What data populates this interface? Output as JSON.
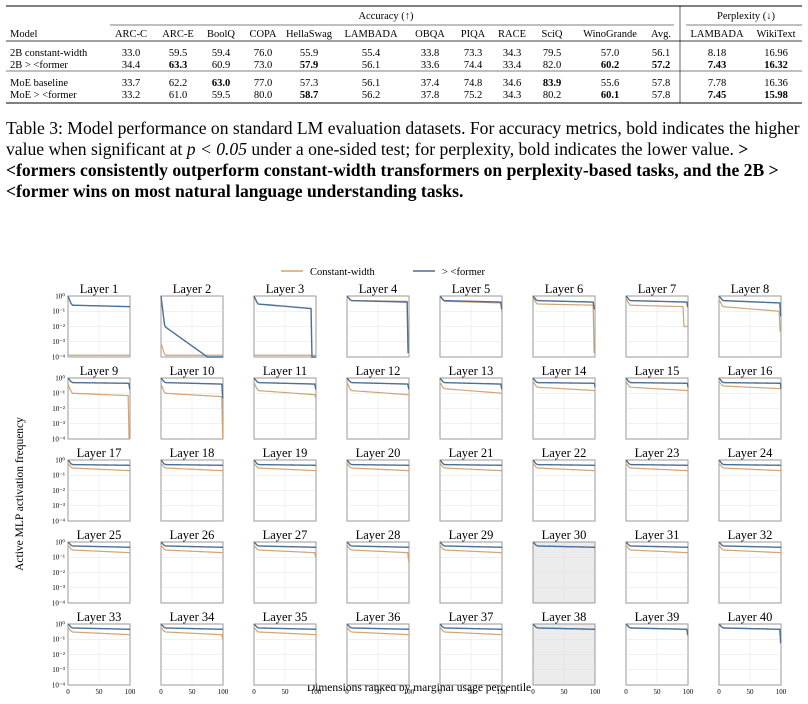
{
  "table": {
    "group_headers": {
      "accuracy": "Accuracy (↑)",
      "perplexity": "Perplexity (↓)"
    },
    "columns": [
      "Model",
      "ARC-C",
      "ARC-E",
      "BoolQ",
      "COPA",
      "HellaSwag",
      "LAMBADA",
      "OBQA",
      "PIQA",
      "RACE",
      "SciQ",
      "WinoGrande",
      "Avg.",
      "LAMBADA",
      "WikiText"
    ],
    "groups": [
      {
        "rows": [
          {
            "cells": [
              "2B constant-width",
              "33.0",
              "59.5",
              "59.4",
              "76.0",
              "55.9",
              "55.4",
              "33.8",
              "73.3",
              "34.3",
              "79.5",
              "57.0",
              "56.1",
              "8.18",
              "16.96"
            ],
            "bold": []
          },
          {
            "cells": [
              "2B > <former",
              "34.4",
              "63.3",
              "60.9",
              "73.0",
              "57.9",
              "56.1",
              "33.6",
              "74.4",
              "33.4",
              "82.0",
              "60.2",
              "57.2",
              "7.43",
              "16.32"
            ],
            "bold": [
              2,
              5,
              11,
              12,
              13,
              14
            ]
          }
        ]
      },
      {
        "rows": [
          {
            "cells": [
              "MoE baseline",
              "33.7",
              "62.2",
              "63.0",
              "77.0",
              "57.3",
              "56.1",
              "37.4",
              "74.8",
              "34.6",
              "83.9",
              "55.6",
              "57.8",
              "7.78",
              "16.36"
            ],
            "bold": [
              3,
              10
            ]
          },
          {
            "cells": [
              "MoE > <former",
              "33.2",
              "61.0",
              "59.5",
              "80.0",
              "58.7",
              "56.2",
              "37.8",
              "75.2",
              "34.3",
              "80.2",
              "60.1",
              "57.8",
              "7.45",
              "15.98"
            ],
            "bold": [
              5,
              11,
              13,
              14
            ]
          }
        ]
      }
    ]
  },
  "caption": {
    "lead": "Table 3: Model performance on standard LM evaluation datasets. For accuracy metrics, bold indicates the higher value when significant at ",
    "math": "p < 0.05",
    "mid": " under a one-sided test; for perplexity, bold indicates the lower value. ",
    "bold": "> <formers consistently outperform constant-width transformers on perplexity-based tasks, and the 2B > <former wins on most natural language understanding tasks."
  },
  "chart_data": {
    "type": "line",
    "legend": {
      "placement": "top-center",
      "entries": [
        "Constant-width",
        "> <former"
      ]
    },
    "colors": {
      "Constant-width": "#d4a373",
      "> <former": "#4c6f96"
    },
    "ylabel": "Active MLP activation frequency",
    "xlabel": "Dimensions ranked by marginal usage percentile",
    "y_scale": "log",
    "ylim": [
      0.0001,
      1
    ],
    "y_ticks": [
      "10⁰",
      "10⁻¹",
      "10⁻²",
      "10⁻³",
      "10⁻⁴"
    ],
    "xlim": [
      0,
      100
    ],
    "x_ticks": [
      "0",
      "50",
      "100"
    ],
    "grid": true,
    "panels": [
      {
        "title": "Layer 1",
        "width": 0.25,
        "width_top": 1,
        "width_end": 0.2,
        "width_drop_at": 100,
        "width_drop_to": 0.2,
        "const": 0.00013,
        "const_top": 0.00013,
        "const_end": 0.00013,
        "const_drop_at": 100,
        "const_drop_to": 0.00013
      },
      {
        "title": "Layer 2",
        "width": 0.01,
        "width_top": 1,
        "width_end": 0.0001,
        "width_drop_at": 75,
        "width_drop_to": 0.0001,
        "const": 0.00013,
        "const_top": 0.0008,
        "const_end": 0.00013,
        "const_drop_at": 100,
        "const_drop_to": 0.00013
      },
      {
        "title": "Layer 3",
        "width": 0.3,
        "width_top": 1,
        "width_end": 0.15,
        "width_drop_at": 92,
        "width_drop_to": 0.0001,
        "const": 0.00013,
        "const_top": 0.00013,
        "const_end": 0.00013,
        "const_drop_at": 100,
        "const_drop_to": 0.00013
      },
      {
        "title": "Layer 4",
        "width": 0.5,
        "width_top": 1,
        "width_end": 0.4,
        "width_drop_at": 97,
        "width_drop_to": 0.0002,
        "const": 0.5,
        "const_top": 1,
        "const_end": 0.45,
        "const_drop_at": 97,
        "const_drop_to": 0.0003
      },
      {
        "title": "Layer 5",
        "width": 0.5,
        "width_top": 1,
        "width_end": 0.4,
        "width_drop_at": 98,
        "width_drop_to": 0.15,
        "const": 0.45,
        "const_top": 1,
        "const_end": 0.35,
        "const_drop_at": 98,
        "const_drop_to": 0.1
      },
      {
        "title": "Layer 6",
        "width": 0.5,
        "width_top": 1,
        "width_end": 0.4,
        "width_drop_at": 97,
        "width_drop_to": 0.15,
        "const": 0.3,
        "const_top": 0.8,
        "const_end": 0.25,
        "const_drop_at": 97,
        "const_drop_to": 0.0002
      },
      {
        "title": "Layer 7",
        "width": 0.5,
        "width_top": 1,
        "width_end": 0.4,
        "width_drop_at": 98,
        "width_drop_to": 0.2,
        "const": 0.25,
        "const_top": 0.7,
        "const_end": 0.2,
        "const_drop_at": 92,
        "const_drop_to": 0.01
      },
      {
        "title": "Layer 8",
        "width": 0.5,
        "width_top": 1,
        "width_end": 0.35,
        "width_drop_at": 98,
        "width_drop_to": 0.05,
        "const": 0.2,
        "const_top": 0.6,
        "const_end": 0.1,
        "const_drop_at": 97,
        "const_drop_to": 0.005
      },
      {
        "title": "Layer 9",
        "width": 0.5,
        "width_top": 1,
        "width_end": 0.45,
        "width_drop_at": 98,
        "width_drop_to": 0.2,
        "const": 0.1,
        "const_top": 0.4,
        "const_end": 0.07,
        "const_drop_at": 97,
        "const_drop_to": 0.0001
      },
      {
        "title": "Layer 10",
        "width": 0.5,
        "width_top": 1,
        "width_end": 0.4,
        "width_drop_at": 98,
        "width_drop_to": 0.05,
        "const": 0.1,
        "const_top": 0.4,
        "const_end": 0.06,
        "const_drop_at": 98,
        "const_drop_to": 0.0001
      },
      {
        "title": "Layer 11",
        "width": 0.5,
        "width_top": 1,
        "width_end": 0.4,
        "width_drop_at": 98,
        "width_drop_to": 0.2,
        "const": 0.15,
        "const_top": 0.5,
        "const_end": 0.08,
        "const_drop_at": 98,
        "const_drop_to": 0.05
      },
      {
        "title": "Layer 12",
        "width": 0.5,
        "width_top": 1,
        "width_end": 0.4,
        "width_drop_at": 98,
        "width_drop_to": 0.2,
        "const": 0.15,
        "const_top": 0.5,
        "const_end": 0.08,
        "const_drop_at": 100,
        "const_drop_to": 0.08
      },
      {
        "title": "Layer 13",
        "width": 0.5,
        "width_top": 1,
        "width_end": 0.4,
        "width_drop_at": 98,
        "width_drop_to": 0.2,
        "const": 0.2,
        "const_top": 0.5,
        "const_end": 0.1,
        "const_drop_at": 100,
        "const_drop_to": 0.1
      },
      {
        "title": "Layer 14",
        "width": 0.5,
        "width_top": 1,
        "width_end": 0.45,
        "width_drop_at": 99,
        "width_drop_to": 0.25,
        "const": 0.25,
        "const_top": 0.6,
        "const_end": 0.15,
        "const_drop_at": 100,
        "const_drop_to": 0.15
      },
      {
        "title": "Layer 15",
        "width": 0.5,
        "width_top": 1,
        "width_end": 0.45,
        "width_drop_at": 99,
        "width_drop_to": 0.25,
        "const": 0.25,
        "const_top": 0.6,
        "const_end": 0.15,
        "const_drop_at": 100,
        "const_drop_to": 0.15
      },
      {
        "title": "Layer 16",
        "width": 0.5,
        "width_top": 1,
        "width_end": 0.45,
        "width_drop_at": 99,
        "width_drop_to": 0.2,
        "const": 0.3,
        "const_top": 0.6,
        "const_end": 0.2,
        "const_drop_at": 100,
        "const_drop_to": 0.2
      },
      {
        "title": "Layer 17",
        "width": 0.5,
        "width_top": 1,
        "width_end": 0.45,
        "width_drop_at": 100,
        "width_drop_to": 0.45,
        "const": 0.3,
        "const_top": 0.6,
        "const_end": 0.2,
        "const_drop_at": 100,
        "const_drop_to": 0.2
      },
      {
        "title": "Layer 18",
        "width": 0.5,
        "width_top": 1,
        "width_end": 0.45,
        "width_drop_at": 100,
        "width_drop_to": 0.45,
        "const": 0.3,
        "const_top": 0.6,
        "const_end": 0.2,
        "const_drop_at": 100,
        "const_drop_to": 0.2
      },
      {
        "title": "Layer 19",
        "width": 0.5,
        "width_top": 1,
        "width_end": 0.45,
        "width_drop_at": 100,
        "width_drop_to": 0.45,
        "const": 0.3,
        "const_top": 0.6,
        "const_end": 0.2,
        "const_drop_at": 100,
        "const_drop_to": 0.2
      },
      {
        "title": "Layer 20",
        "width": 0.5,
        "width_top": 1,
        "width_end": 0.45,
        "width_drop_at": 100,
        "width_drop_to": 0.45,
        "const": 0.3,
        "const_top": 0.6,
        "const_end": 0.2,
        "const_drop_at": 100,
        "const_drop_to": 0.2
      },
      {
        "title": "Layer 21",
        "width": 0.5,
        "width_top": 1,
        "width_end": 0.45,
        "width_drop_at": 100,
        "width_drop_to": 0.45,
        "const": 0.3,
        "const_top": 0.6,
        "const_end": 0.2,
        "const_drop_at": 100,
        "const_drop_to": 0.2
      },
      {
        "title": "Layer 22",
        "width": 0.5,
        "width_top": 1,
        "width_end": 0.45,
        "width_drop_at": 100,
        "width_drop_to": 0.45,
        "const": 0.3,
        "const_top": 0.6,
        "const_end": 0.2,
        "const_drop_at": 100,
        "const_drop_to": 0.2
      },
      {
        "title": "Layer 23",
        "width": 0.5,
        "width_top": 1,
        "width_end": 0.45,
        "width_drop_at": 100,
        "width_drop_to": 0.45,
        "const": 0.3,
        "const_top": 0.6,
        "const_end": 0.2,
        "const_drop_at": 100,
        "const_drop_to": 0.2
      },
      {
        "title": "Layer 24",
        "width": 0.5,
        "width_top": 1,
        "width_end": 0.45,
        "width_drop_at": 100,
        "width_drop_to": 0.45,
        "const": 0.3,
        "const_top": 0.6,
        "const_end": 0.2,
        "const_drop_at": 100,
        "const_drop_to": 0.2
      },
      {
        "title": "Layer 25",
        "width": 0.55,
        "width_top": 1,
        "width_end": 0.45,
        "width_drop_at": 100,
        "width_drop_to": 0.45,
        "const": 0.3,
        "const_top": 0.6,
        "const_end": 0.2,
        "const_drop_at": 100,
        "const_drop_to": 0.2
      },
      {
        "title": "Layer 26",
        "width": 0.55,
        "width_top": 1,
        "width_end": 0.45,
        "width_drop_at": 100,
        "width_drop_to": 0.45,
        "const": 0.3,
        "const_top": 0.6,
        "const_end": 0.2,
        "const_drop_at": 100,
        "const_drop_to": 0.2
      },
      {
        "title": "Layer 27",
        "width": 0.55,
        "width_top": 1,
        "width_end": 0.45,
        "width_drop_at": 100,
        "width_drop_to": 0.45,
        "const": 0.3,
        "const_top": 0.6,
        "const_end": 0.2,
        "const_drop_at": 98,
        "const_drop_to": 0.1
      },
      {
        "title": "Layer 28",
        "width": 0.55,
        "width_top": 1,
        "width_end": 0.45,
        "width_drop_at": 100,
        "width_drop_to": 0.45,
        "const": 0.3,
        "const_top": 0.6,
        "const_end": 0.2,
        "const_drop_at": 98,
        "const_drop_to": 0.05
      },
      {
        "title": "Layer 29",
        "width": 0.55,
        "width_top": 1,
        "width_end": 0.45,
        "width_drop_at": 100,
        "width_drop_to": 0.45,
        "const": 0.3,
        "const_top": 0.6,
        "const_end": 0.2,
        "const_drop_at": 100,
        "const_drop_to": 0.2
      },
      {
        "title": "Layer 30",
        "width": 0.55,
        "width_top": 1,
        "width_end": 0.45,
        "width_drop_at": 100,
        "width_drop_to": 0.45,
        "const": 0.55,
        "const_top": 1,
        "const_end": 0.45,
        "const_drop_at": 100,
        "const_drop_to": 0.45,
        "shaded": true
      },
      {
        "title": "Layer 31",
        "width": 0.55,
        "width_top": 1,
        "width_end": 0.45,
        "width_drop_at": 100,
        "width_drop_to": 0.45,
        "const": 0.3,
        "const_top": 0.6,
        "const_end": 0.2,
        "const_drop_at": 100,
        "const_drop_to": 0.2
      },
      {
        "title": "Layer 32",
        "width": 0.55,
        "width_top": 1,
        "width_end": 0.45,
        "width_drop_at": 100,
        "width_drop_to": 0.45,
        "const": 0.3,
        "const_top": 0.6,
        "const_end": 0.2,
        "const_drop_at": 100,
        "const_drop_to": 0.2
      },
      {
        "title": "Layer 33",
        "width": 0.55,
        "width_top": 1,
        "width_end": 0.45,
        "width_drop_at": 100,
        "width_drop_to": 0.45,
        "const": 0.3,
        "const_top": 0.6,
        "const_end": 0.2,
        "const_drop_at": 100,
        "const_drop_to": 0.2
      },
      {
        "title": "Layer 34",
        "width": 0.55,
        "width_top": 1,
        "width_end": 0.45,
        "width_drop_at": 100,
        "width_drop_to": 0.45,
        "const": 0.3,
        "const_top": 0.6,
        "const_end": 0.2,
        "const_drop_at": 98,
        "const_drop_to": 0.1
      },
      {
        "title": "Layer 35",
        "width": 0.55,
        "width_top": 1,
        "width_end": 0.45,
        "width_drop_at": 100,
        "width_drop_to": 0.45,
        "const": 0.3,
        "const_top": 0.6,
        "const_end": 0.2,
        "const_drop_at": 100,
        "const_drop_to": 0.2
      },
      {
        "title": "Layer 36",
        "width": 0.55,
        "width_top": 1,
        "width_end": 0.45,
        "width_drop_at": 100,
        "width_drop_to": 0.45,
        "const": 0.3,
        "const_top": 0.6,
        "const_end": 0.2,
        "const_drop_at": 100,
        "const_drop_to": 0.2
      },
      {
        "title": "Layer 37",
        "width": 0.55,
        "width_top": 1,
        "width_end": 0.45,
        "width_drop_at": 100,
        "width_drop_to": 0.45,
        "const": 0.3,
        "const_top": 0.6,
        "const_end": 0.2,
        "const_drop_at": 100,
        "const_drop_to": 0.2
      },
      {
        "title": "Layer 38",
        "width": 0.55,
        "width_top": 1,
        "width_end": 0.45,
        "width_drop_at": 100,
        "width_drop_to": 0.45,
        "const": 0.55,
        "const_top": 1,
        "const_end": 0.45,
        "const_drop_at": 100,
        "const_drop_to": 0.45,
        "shaded": true
      },
      {
        "title": "Layer 39",
        "width": 0.55,
        "width_top": 1,
        "width_end": 0.45,
        "width_drop_at": 98,
        "width_drop_to": 0.2,
        "const": 0.55,
        "const_top": 1,
        "const_end": 0.45,
        "const_drop_at": 100,
        "const_drop_to": 0.45
      },
      {
        "title": "Layer 40",
        "width": 0.55,
        "width_top": 1,
        "width_end": 0.45,
        "width_drop_at": 98,
        "width_drop_to": 0.06,
        "const": 0.55,
        "const_top": 1,
        "const_end": 0.45,
        "const_drop_at": 100,
        "const_drop_to": 0.45
      }
    ]
  }
}
